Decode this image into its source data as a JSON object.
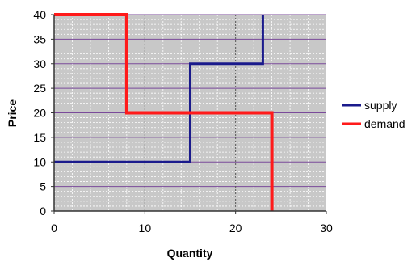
{
  "chart_data": {
    "type": "line",
    "line_style": "step",
    "xlabel": "Quantity",
    "ylabel": "Price",
    "xlim": [
      0,
      30
    ],
    "ylim": [
      0,
      40
    ],
    "x_ticks": [
      0,
      10,
      20,
      30
    ],
    "y_ticks": [
      0,
      5,
      10,
      15,
      20,
      25,
      30,
      35,
      40
    ],
    "grid": true,
    "legend_position": "right",
    "plot_background": "#c8c8c8",
    "series": [
      {
        "name": "supply",
        "color": "#1a1a8c",
        "points": [
          [
            0,
            10
          ],
          [
            15,
            10
          ],
          [
            15,
            30
          ],
          [
            23,
            30
          ],
          [
            23,
            40
          ]
        ]
      },
      {
        "name": "demand",
        "color": "#ff1a1a",
        "points": [
          [
            0,
            40
          ],
          [
            8,
            40
          ],
          [
            8,
            20
          ],
          [
            24,
            20
          ],
          [
            24,
            0
          ]
        ]
      }
    ]
  }
}
